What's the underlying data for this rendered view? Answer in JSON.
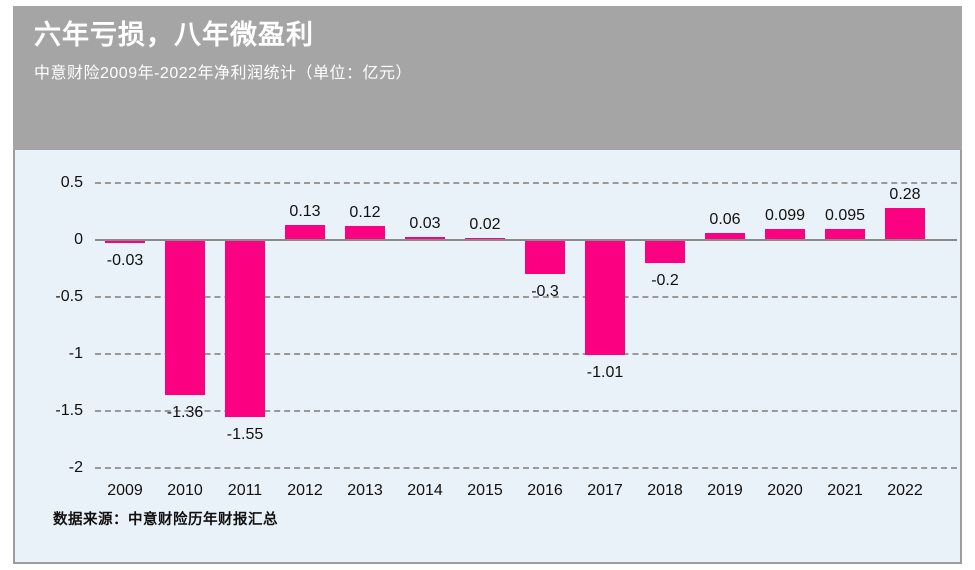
{
  "header": {
    "title": "六年亏损，八年微盈利",
    "subtitle": "中意财险2009年-2022年净利润统计（单位：亿元）"
  },
  "footer": {
    "source": "数据来源：中意财险历年财报汇总"
  },
  "colors": {
    "header_bg": "#A5A5A5",
    "header_text": "#FFFFFF",
    "panel_bg": "#EAF2F9",
    "panel_border": "#9C9C9C",
    "bar": "#FB0081",
    "zero_line": "#8A8A8A",
    "gridline": "#999999",
    "text": "#111111"
  },
  "chart_data": {
    "type": "bar",
    "title": "六年亏损，八年微盈利",
    "subtitle": "中意财险2009年-2022年净利润统计（单位：亿元）",
    "unit": "亿元",
    "categories": [
      "2009",
      "2010",
      "2011",
      "2012",
      "2013",
      "2014",
      "2015",
      "2016",
      "2017",
      "2018",
      "2019",
      "2020",
      "2021",
      "2022"
    ],
    "values": [
      -0.03,
      -1.36,
      -1.55,
      0.13,
      0.12,
      0.03,
      0.02,
      -0.3,
      -1.01,
      -0.2,
      0.06,
      0.099,
      0.095,
      0.28
    ],
    "bar_labels": [
      "-0.03",
      "-1.36",
      "-1.55",
      "0.13",
      "0.12",
      "0.03",
      "0.02",
      "-0.3",
      "-1.01",
      "-0.2",
      "0.06",
      "0.099",
      "0.095",
      "0.28"
    ],
    "xlabel": "",
    "ylabel": "",
    "ylim": [
      -2,
      0.5
    ],
    "yticks": [
      {
        "value": 0.5,
        "label": "0.5"
      },
      {
        "value": 0,
        "label": "0"
      },
      {
        "value": -0.5,
        "label": "-0.5"
      },
      {
        "value": -1,
        "label": "-1"
      },
      {
        "value": -1.5,
        "label": "-1.5"
      },
      {
        "value": -2,
        "label": "-2"
      }
    ],
    "grid": true,
    "grid_style": "dashed",
    "legend": false,
    "source": "数据来源：中意财险历年财报汇总"
  }
}
